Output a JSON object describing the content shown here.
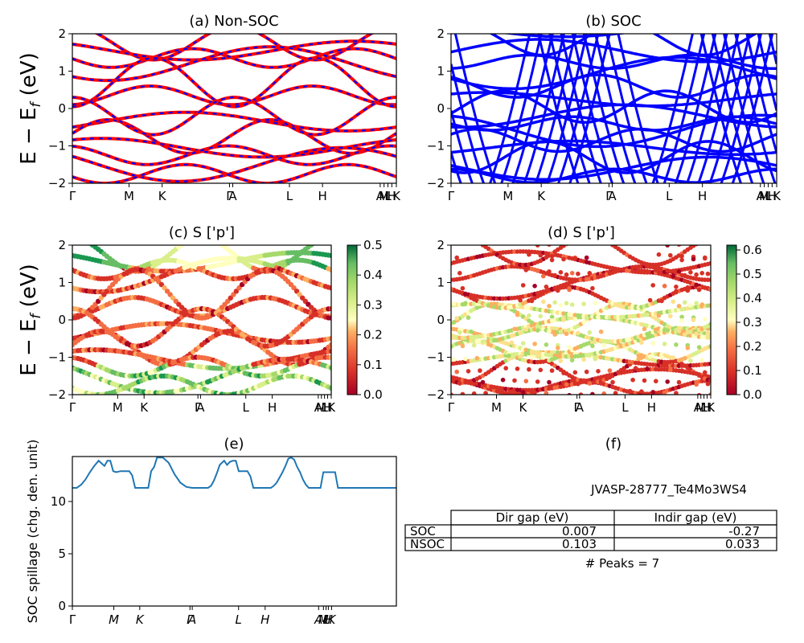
{
  "figure": {
    "panel_a": {
      "title": "(a) Non-SOC"
    },
    "panel_b": {
      "title": "(b) SOC"
    },
    "panel_c": {
      "title": "(c)  S ['p']"
    },
    "panel_d": {
      "title": "(d) S ['p']"
    },
    "panel_e": {
      "title": "(e)"
    },
    "panel_f": {
      "title": "(f)"
    },
    "ylabel_band": "E − E_f (eV)",
    "ylabel_spillage": "SOC spillage (chg. den. unit)",
    "kpath_labels": [
      "Γ",
      "M",
      "K",
      "Γ",
      "A",
      "L",
      "H",
      "A",
      "M",
      "L",
      "H",
      "K"
    ],
    "kpath_labels_e": [
      "Γ",
      "M",
      "K",
      "Γ",
      "A",
      "L",
      "H",
      "A",
      "M",
      "L",
      "H",
      "K"
    ],
    "energy_ticks": [
      "2",
      "1",
      "0",
      "−1",
      "−2"
    ],
    "spillage_ticks": [
      "0",
      "5",
      "10"
    ],
    "colorbar_c_ticks": [
      "0.0",
      "0.1",
      "0.2",
      "0.3",
      "0.4",
      "0.5"
    ],
    "colorbar_d_ticks": [
      "0.0",
      "0.1",
      "0.2",
      "0.3",
      "0.4",
      "0.5",
      "0.6"
    ],
    "colors": {
      "nonsoc_red": "#ff0000",
      "soc_blue": "#0000ff",
      "spillage_line": "#1f77b4"
    }
  },
  "info": {
    "material_id": "JVASP-28777_Te4Mo3WS4",
    "table_headers": [
      "Dir gap (eV)",
      "Indir gap (eV)"
    ],
    "table_rows": [
      {
        "label": "SOC",
        "dir": "0.007",
        "indir": "-0.27"
      },
      {
        "label": "NSOC",
        "dir": "0.103",
        "indir": "0.033"
      }
    ],
    "peaks_text": "# Peaks = 7"
  },
  "chart_data": [
    {
      "type": "line",
      "title": "(a) Non-SOC",
      "ylabel": "E − E_f (eV)",
      "ylim": [
        -2,
        2
      ],
      "x_ticks": [
        "Γ",
        "M",
        "K",
        "Γ",
        "A",
        "L",
        "H",
        "A",
        "M",
        "L",
        "H",
        "K"
      ],
      "description_series": [
        "Non-SOC bands (red)",
        "SOC bands (blue dashed)"
      ]
    },
    {
      "type": "line",
      "title": "(b) SOC",
      "ylim": [
        -2,
        2
      ],
      "x_ticks": [
        "Γ",
        "M",
        "K",
        "Γ",
        "A",
        "L",
        "H",
        "A",
        "M",
        "L",
        "H",
        "K"
      ]
    },
    {
      "type": "scatter",
      "title": "(c)  S ['p']",
      "ylim": [
        -2,
        2
      ],
      "colorbar_range": [
        0.0,
        0.5
      ]
    },
    {
      "type": "scatter",
      "title": "(d) S ['p']",
      "ylim": [
        -2,
        2
      ],
      "colorbar_range": [
        0.0,
        0.6
      ]
    },
    {
      "type": "line",
      "title": "(e)",
      "ylabel": "SOC spillage (chg. den. unit)",
      "ylim": [
        0,
        14.3
      ],
      "x": [
        0,
        3,
        6,
        9,
        12,
        15,
        18,
        22,
        24,
        26,
        28,
        30,
        33,
        35,
        37,
        39,
        41,
        43,
        45,
        47,
        49,
        52,
        54,
        56,
        58,
        62,
        66,
        70,
        74,
        78,
        82,
        85,
        87,
        89,
        91,
        93,
        95,
        97,
        99,
        101,
        104,
        106,
        108,
        110,
        112,
        114,
        116,
        118,
        120,
        122,
        124,
        126,
        128,
        130,
        132,
        134,
        136,
        138,
        140,
        142,
        144,
        146,
        148,
        150,
        152,
        154,
        156,
        158,
        160,
        162,
        164,
        166,
        168,
        170,
        172,
        174,
        176,
        178,
        180,
        182,
        184,
        186,
        188,
        190,
        192,
        194,
        196,
        198,
        200,
        202,
        204,
        206,
        208,
        210,
        212,
        214,
        216,
        218,
        220,
        222
      ],
      "values": [
        11.3,
        11.3,
        11.6,
        12.1,
        12.8,
        13.4,
        13.9,
        13.4,
        13.9,
        13.9,
        12.9,
        12.8,
        12.9,
        12.9,
        12.9,
        12.9,
        12.5,
        11.3,
        11.3,
        11.3,
        11.3,
        11.3,
        12.9,
        13.3,
        14.2,
        14.2,
        13.7,
        12.6,
        11.8,
        11.4,
        11.3,
        11.3,
        11.3,
        11.3,
        11.3,
        11.3,
        11.5,
        12.0,
        12.7,
        13.5,
        13.9,
        13.5,
        13.8,
        13.9,
        13.9,
        12.9,
        12.9,
        12.9,
        12.9,
        12.4,
        11.3,
        11.3,
        11.3,
        11.3,
        11.3,
        11.3,
        11.3,
        11.5,
        11.8,
        12.3,
        12.8,
        13.4,
        14.1,
        14.2,
        14.0,
        13.3,
        12.8,
        12.1,
        11.6,
        11.3,
        11.3,
        11.3,
        11.3,
        11.3,
        12.8,
        12.8,
        12.8,
        12.8,
        12.8,
        11.3,
        11.3,
        11.3,
        11.3,
        11.3,
        11.3,
        11.3,
        11.3,
        11.3,
        11.3,
        11.3,
        11.3,
        11.3,
        11.3,
        11.3,
        11.3,
        11.3,
        11.3,
        11.3,
        11.3,
        11.3
      ]
    }
  ]
}
